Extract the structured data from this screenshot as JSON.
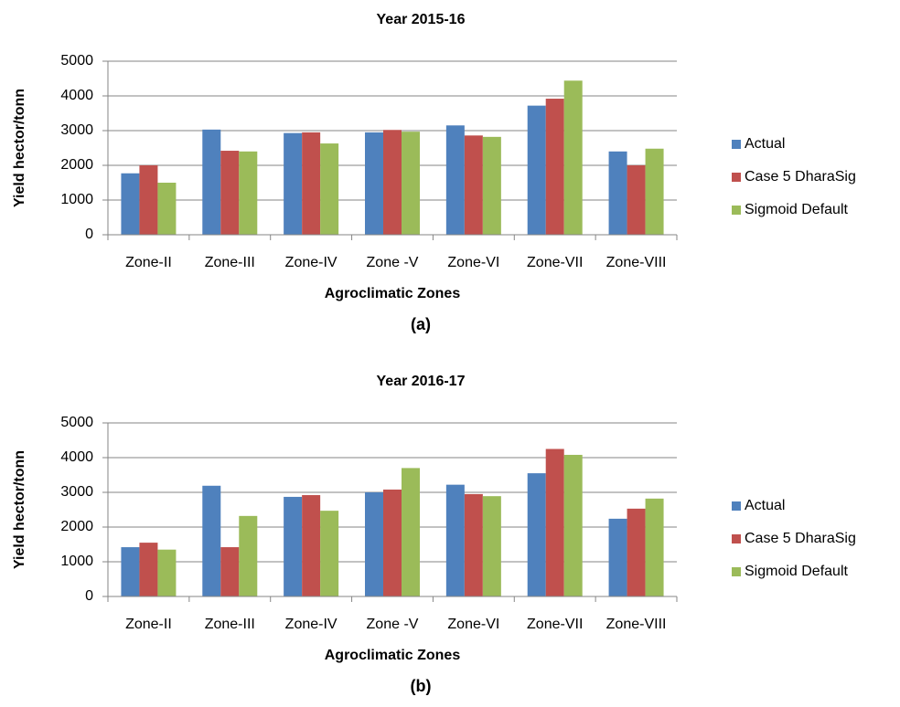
{
  "chart_data": [
    {
      "type": "bar",
      "title": "Year 2015-16",
      "x_label": "Agroclimatic Zones",
      "y_label": "Yield hector/tonn",
      "caption": "(a)",
      "categories": [
        "Zone-II",
        "Zone-III",
        "Zone-IV",
        "Zone -V",
        "Zone-VI",
        "Zone-VII",
        "Zone-VIII"
      ],
      "series": [
        {
          "name": "Actual",
          "color": "#4f81bd",
          "values": [
            1770,
            3030,
            2930,
            2950,
            3150,
            3720,
            2400
          ]
        },
        {
          "name": "Case 5 DharaSig",
          "color": "#c0504d",
          "values": [
            2000,
            2420,
            2950,
            3020,
            2860,
            3920,
            2000
          ]
        },
        {
          "name": "Sigmoid Default",
          "color": "#9bbb59",
          "values": [
            1500,
            2400,
            2630,
            2970,
            2820,
            4440,
            2480
          ]
        }
      ],
      "ylim": [
        0,
        5000
      ],
      "yticks": [
        0,
        1000,
        2000,
        3000,
        4000,
        5000
      ],
      "grid": true,
      "legend": "right"
    },
    {
      "type": "bar",
      "title": "Year 2016-17",
      "x_label": "Agroclimatic Zones",
      "y_label": "Yield hector/tonn",
      "caption": "(b)",
      "categories": [
        "Zone-II",
        "Zone-III",
        "Zone-IV",
        "Zone -V",
        "Zone-VI",
        "Zone-VII",
        "Zone-VIII"
      ],
      "series": [
        {
          "name": "Actual",
          "color": "#4f81bd",
          "values": [
            1420,
            3190,
            2870,
            3000,
            3220,
            3550,
            2240
          ]
        },
        {
          "name": "Case 5 DharaSig",
          "color": "#c0504d",
          "values": [
            1550,
            1420,
            2920,
            3080,
            2950,
            4250,
            2530
          ]
        },
        {
          "name": "Sigmoid Default",
          "color": "#9bbb59",
          "values": [
            1350,
            2320,
            2470,
            3700,
            2890,
            4080,
            2820
          ]
        }
      ],
      "ylim": [
        0,
        5000
      ],
      "yticks": [
        0,
        1000,
        2000,
        3000,
        4000,
        5000
      ],
      "grid": true,
      "legend": "right"
    }
  ]
}
